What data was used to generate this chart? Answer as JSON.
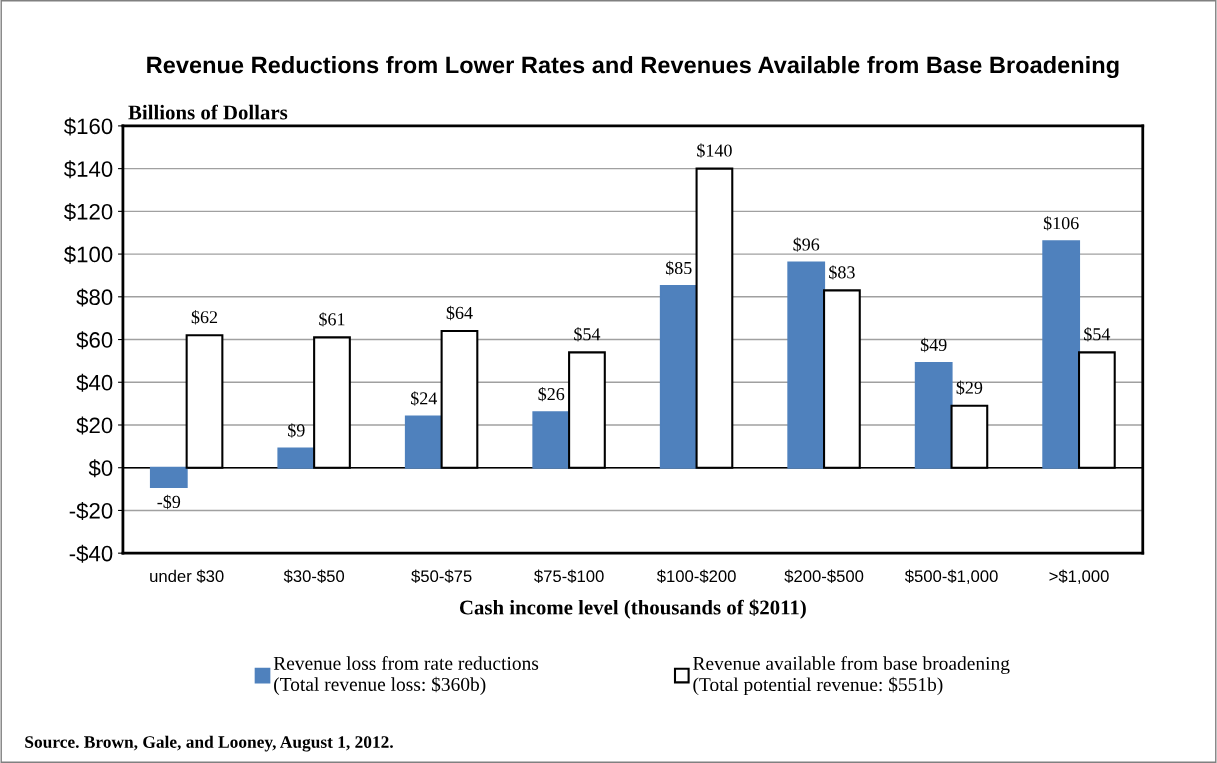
{
  "chart_data": {
    "type": "bar",
    "title": "Revenue Reductions from Lower Rates and Revenues Available from Base Broadening",
    "ylabel": "Billions of Dollars",
    "xlabel": "Cash income level (thousands of $2011)",
    "categories": [
      "under $30",
      "$30-$50",
      "$50-$75",
      "$75-$100",
      "$100-$200",
      "$200-$500",
      "$500-$1,000",
      ">$1,000"
    ],
    "series": [
      {
        "name": "Revenue loss from rate reductions\n(Total revenue loss: $360b)",
        "color": "#4f81bd",
        "values": [
          -9,
          9,
          24,
          26,
          85,
          96,
          49,
          106
        ],
        "value_labels": [
          "-$9",
          "$9",
          "$24",
          "$26",
          "$85",
          "$96",
          "$49",
          "$106"
        ]
      },
      {
        "name": "Revenue available from base broadening\n(Total potential revenue: $551b)",
        "color": "#ffffff",
        "values": [
          62,
          61,
          64,
          54,
          140,
          83,
          29,
          54
        ],
        "value_labels": [
          "$62",
          "$61",
          "$64",
          "$54",
          "$140",
          "$83",
          "$29",
          "$54"
        ]
      }
    ],
    "ylim": [
      -40,
      160
    ],
    "yticks": [
      {
        "value": -40,
        "label": "-$40"
      },
      {
        "value": -20,
        "label": "-$20"
      },
      {
        "value": 0,
        "label": "$0"
      },
      {
        "value": 20,
        "label": "$20"
      },
      {
        "value": 40,
        "label": "$40"
      },
      {
        "value": 60,
        "label": "$60"
      },
      {
        "value": 80,
        "label": "$80"
      },
      {
        "value": 100,
        "label": "$100"
      },
      {
        "value": 120,
        "label": "$120"
      },
      {
        "value": 140,
        "label": "$140"
      },
      {
        "value": 160,
        "label": "$160"
      }
    ],
    "grid": "y",
    "legend": "bottom",
    "annotations": [
      "Source. Brown, Gale, and Looney, August 1, 2012."
    ]
  }
}
